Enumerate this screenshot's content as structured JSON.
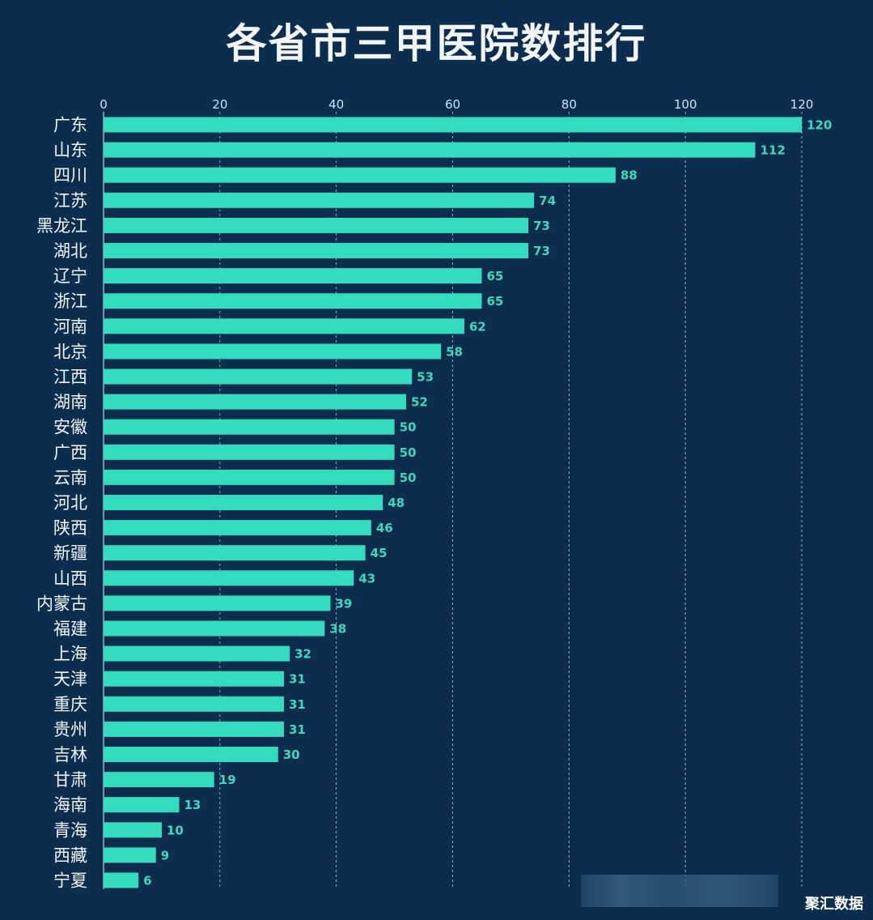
{
  "chart_data": {
    "type": "bar",
    "orientation": "horizontal",
    "title": "各省市三甲医院数排行",
    "xlim": [
      0,
      120
    ],
    "xticks": [
      0,
      20,
      40,
      60,
      80,
      100,
      120
    ],
    "grid": true,
    "categories": [
      "广东",
      "山东",
      "四川",
      "江苏",
      "黑龙江",
      "湖北",
      "辽宁",
      "浙江",
      "河南",
      "北京",
      "江西",
      "湖南",
      "安徽",
      "广西",
      "云南",
      "河北",
      "陕西",
      "新疆",
      "山西",
      "内蒙古",
      "福建",
      "上海",
      "天津",
      "重庆",
      "贵州",
      "吉林",
      "甘肃",
      "海南",
      "青海",
      "西藏",
      "宁夏"
    ],
    "values": [
      120,
      112,
      88,
      74,
      73,
      73,
      65,
      65,
      62,
      58,
      53,
      52,
      50,
      50,
      50,
      48,
      46,
      45,
      43,
      39,
      38,
      32,
      31,
      31,
      31,
      30,
      19,
      13,
      10,
      9,
      6
    ],
    "colors": {
      "bar": "#34dcbf",
      "label": "#3fd9bd",
      "background": "#0c2d4e"
    }
  },
  "watermark": {
    "brand": "聚汇数据"
  }
}
